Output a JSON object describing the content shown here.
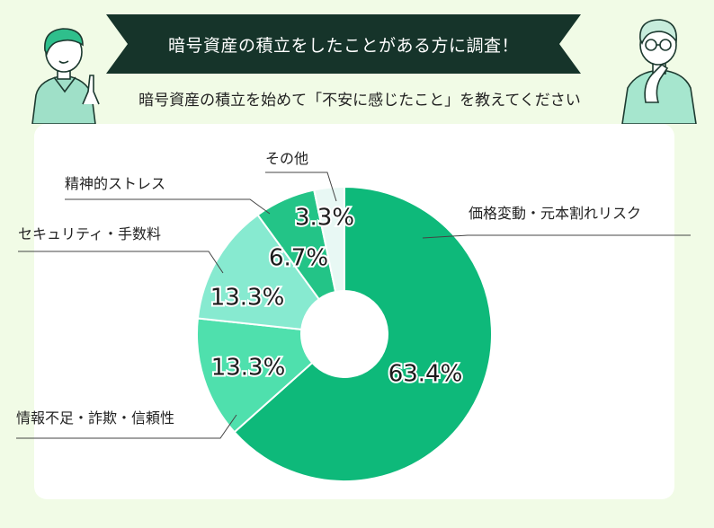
{
  "header": {
    "title": "暗号資産の積立をしたことがある方に調査！",
    "question": "暗号資産の積立を始めて「不安に感じたこと」を教えてください"
  },
  "colors": {
    "banner": "#16342a",
    "background": "#f1fbe6",
    "slices": [
      "#0eb97a",
      "#4fe0ad",
      "#87ead0",
      "#23c487",
      "#e8f8f4"
    ]
  },
  "chart_data": {
    "type": "pie",
    "donut": true,
    "start": "top",
    "direction": "clockwise",
    "slices": [
      {
        "label": "価格変動・元本割れリスク",
        "value": 63.4,
        "display": "63.4%"
      },
      {
        "label": "情報不足・詐欺・信頼性",
        "value": 13.3,
        "display": "13.3%"
      },
      {
        "label": "セキュリティ・手数料",
        "value": 13.3,
        "display": "13.3%"
      },
      {
        "label": "精神的ストレス",
        "value": 6.7,
        "display": "6.7%"
      },
      {
        "label": "その他",
        "value": 3.3,
        "display": "3.3%"
      }
    ]
  }
}
